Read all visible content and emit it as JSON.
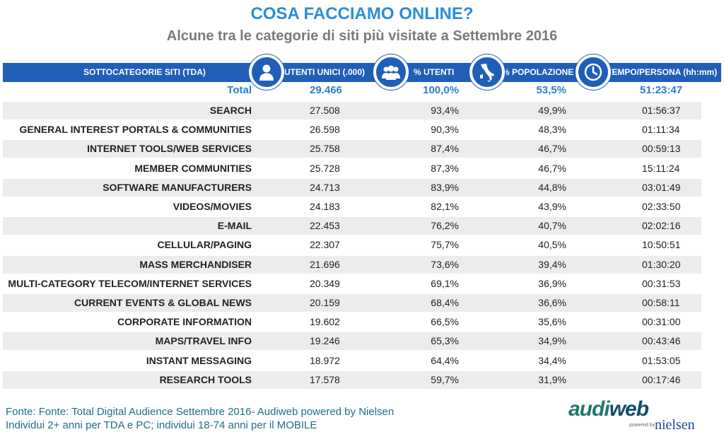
{
  "title": "COSA FACCIAMO ONLINE?",
  "subtitle": "Alcune tra le categorie di siti più visitate a Settembre 2016",
  "colors": {
    "accent": "#1f5fb8",
    "title": "#2b8fd6",
    "row_shade": "#ececec",
    "footer": "#1e6f86"
  },
  "header": {
    "col_category": "SOTTOCATEGORIE SITI  (TDA)",
    "col_users": "UTENTI UNICI (.000)",
    "col_pct_users": "% UTENTI",
    "col_pct_pop": "% POPOLAZIONE",
    "col_time": "TEMPO/PERSONA (hh:mm)",
    "icons": [
      "person-icon",
      "group-icon",
      "italy-map-icon",
      "clock-icon"
    ]
  },
  "total": {
    "name": "Total",
    "users": "29.466",
    "pct_users": "100,0%",
    "pct_pop": "53,5%",
    "time": "51:23:47"
  },
  "rows": [
    {
      "name": "SEARCH",
      "users": "27.508",
      "pct_users": "93,4%",
      "pct_pop": "49,9%",
      "time": "01:56:37"
    },
    {
      "name": "GENERAL INTEREST PORTALS & COMMUNITIES",
      "users": "26.598",
      "pct_users": "90,3%",
      "pct_pop": "48,3%",
      "time": "01:11:34"
    },
    {
      "name": "INTERNET TOOLS/WEB SERVICES",
      "users": "25.758",
      "pct_users": "87,4%",
      "pct_pop": "46,7%",
      "time": "00:59:13"
    },
    {
      "name": "MEMBER COMMUNITIES",
      "users": "25.728",
      "pct_users": "87,3%",
      "pct_pop": "46,7%",
      "time": "15:11:24"
    },
    {
      "name": "SOFTWARE MANUFACTURERS",
      "users": "24.713",
      "pct_users": "83,9%",
      "pct_pop": "44,8%",
      "time": "03:01:49"
    },
    {
      "name": "VIDEOS/MOVIES",
      "users": "24.183",
      "pct_users": "82,1%",
      "pct_pop": "43,9%",
      "time": "02:33:50"
    },
    {
      "name": "E-MAIL",
      "users": "22.453",
      "pct_users": "76,2%",
      "pct_pop": "40,7%",
      "time": "02:02:16"
    },
    {
      "name": "CELLULAR/PAGING",
      "users": "22.307",
      "pct_users": "75,7%",
      "pct_pop": "40,5%",
      "time": "10:50:51"
    },
    {
      "name": "MASS MERCHANDISER",
      "users": "21.696",
      "pct_users": "73,6%",
      "pct_pop": "39,4%",
      "time": "01:30:20"
    },
    {
      "name": "MULTI-CATEGORY TELECOM/INTERNET SERVICES",
      "users": "20.349",
      "pct_users": "69,1%",
      "pct_pop": "36,9%",
      "time": "00:31:53"
    },
    {
      "name": "CURRENT EVENTS & GLOBAL NEWS",
      "users": "20.159",
      "pct_users": "68,4%",
      "pct_pop": "36,6%",
      "time": "00:58:11"
    },
    {
      "name": "CORPORATE INFORMATION",
      "users": "19.602",
      "pct_users": "66,5%",
      "pct_pop": "35,6%",
      "time": "00:31:00"
    },
    {
      "name": "MAPS/TRAVEL INFO",
      "users": "19.246",
      "pct_users": "65,3%",
      "pct_pop": "34,9%",
      "time": "00:43:46"
    },
    {
      "name": "INSTANT MESSAGING",
      "users": "18.972",
      "pct_users": "64,4%",
      "pct_pop": "34,4%",
      "time": "01:53:05"
    },
    {
      "name": "RESEARCH TOOLS",
      "users": "17.578",
      "pct_users": "59,7%",
      "pct_pop": "31,9%",
      "time": "00:17:46"
    }
  ],
  "footer": {
    "line1": "Fonte: Fonte: Total Digital Audience Settembre 2016- Audiweb powered by Nielsen",
    "line2": "Individui 2+ anni per TDA e PC; individui 18-74 anni per il MOBILE"
  },
  "logo": {
    "audi": "aud",
    "i": "i",
    "web": "web",
    "by": "powered by",
    "nielsen": "nielsen"
  }
}
